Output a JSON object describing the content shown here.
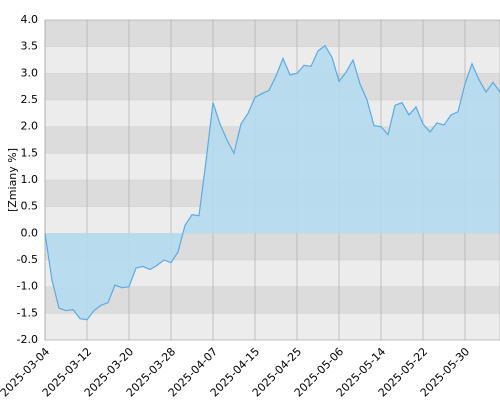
{
  "chart_data": {
    "type": "area",
    "y_label": "[Zmiany %]",
    "categories": [
      "2025-03-04",
      null,
      null,
      null,
      null,
      null,
      "2025-03-12",
      null,
      null,
      null,
      null,
      null,
      "2025-03-20",
      null,
      null,
      null,
      null,
      null,
      "2025-03-28",
      null,
      null,
      null,
      null,
      null,
      "2025-04-07",
      null,
      null,
      null,
      null,
      null,
      "2025-04-15",
      null,
      null,
      null,
      null,
      null,
      "2025-04-25",
      null,
      null,
      null,
      null,
      null,
      "2025-05-06",
      null,
      null,
      null,
      null,
      null,
      "2025-05-14",
      null,
      null,
      null,
      null,
      null,
      "2025-05-22",
      null,
      null,
      null,
      null,
      null,
      "2025-05-30",
      null,
      null,
      null,
      null,
      null
    ],
    "values": [
      0,
      -0.88,
      -1.4,
      -1.45,
      -1.43,
      -1.6,
      -1.62,
      -1.45,
      -1.35,
      -1.3,
      -0.97,
      -1.02,
      -1.0,
      -0.65,
      -0.62,
      -0.68,
      -0.6,
      -0.5,
      -0.55,
      -0.35,
      0.15,
      0.35,
      0.33,
      1.35,
      2.45,
      2.05,
      1.75,
      1.5,
      2.05,
      2.25,
      2.55,
      2.62,
      2.68,
      2.95,
      3.28,
      2.97,
      3.0,
      3.15,
      3.13,
      3.42,
      3.52,
      3.3,
      2.85,
      3.02,
      3.25,
      2.8,
      2.5,
      2.02,
      2.0,
      1.85,
      2.4,
      2.45,
      2.22,
      2.37,
      2.05,
      1.9,
      2.07,
      2.03,
      2.22,
      2.28,
      2.8,
      3.18,
      2.88,
      2.65,
      2.83,
      2.65
    ],
    "color": "#5aaae6",
    "fill": "#b4dcee",
    "ylim": [
      -2,
      4
    ],
    "yticks": [
      {
        "value": -2,
        "label": "-2.0"
      },
      -1.5,
      {
        "value": -1,
        "label": "-1.0"
      },
      -0.5,
      {
        "value": 0,
        "label": "0.0"
      },
      0.5,
      {
        "value": 1,
        "label": "1.0"
      },
      1.5,
      {
        "value": 2,
        "label": "2.0"
      },
      2.5,
      {
        "value": 3,
        "label": "3.0"
      },
      3.5,
      {
        "value": 4,
        "label": "4.0"
      }
    ],
    "grid": true
  }
}
